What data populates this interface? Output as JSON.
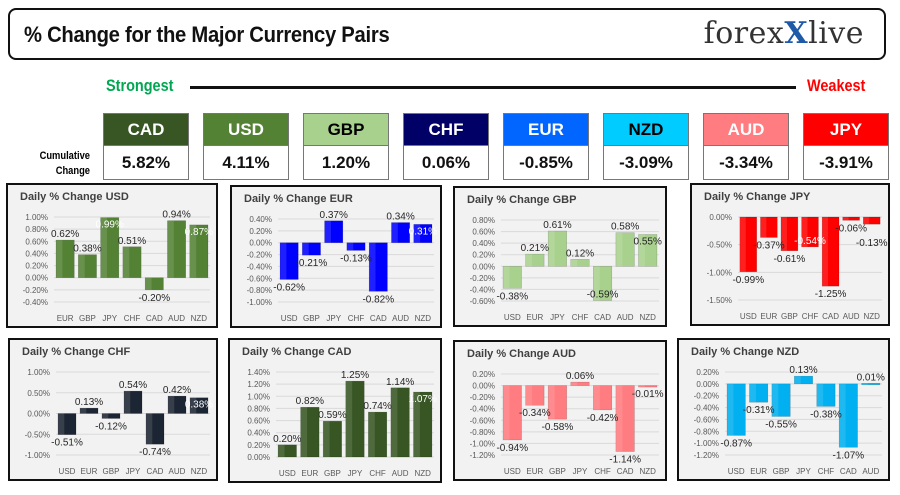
{
  "header": {
    "title": "% Change for the Major Currency Pairs",
    "logo_text": "forexlive"
  },
  "scale": {
    "strongest_label": "Strongest",
    "weakest_label": "Weakest",
    "cumulative_label_line1": "Cumulative",
    "cumulative_label_line2": "Change"
  },
  "currencies": [
    {
      "code": "CAD",
      "value": "5.82%",
      "color": "#375623",
      "text_color": "#ffffff"
    },
    {
      "code": "USD",
      "value": "4.11%",
      "color": "#548235",
      "text_color": "#ffffff"
    },
    {
      "code": "GBP",
      "value": "1.20%",
      "color": "#a9d18e",
      "text_color": "#000000"
    },
    {
      "code": "CHF",
      "value": "0.06%",
      "color": "#000066",
      "text_color": "#ffffff"
    },
    {
      "code": "EUR",
      "value": "-0.85%",
      "color": "#0066ff",
      "text_color": "#ffffff"
    },
    {
      "code": "NZD",
      "value": "-3.09%",
      "color": "#00ccff",
      "text_color": "#000000"
    },
    {
      "code": "AUD",
      "value": "-3.34%",
      "color": "#ff7c80",
      "text_color": "#ffffff"
    },
    {
      "code": "JPY",
      "value": "-3.91%",
      "color": "#ff0000",
      "text_color": "#ffffff"
    }
  ],
  "chart_data": [
    {
      "type": "bar",
      "title": "Daily % Change USD",
      "color": "#548235",
      "categories": [
        "EUR",
        "GBP",
        "JPY",
        "CHF",
        "CAD",
        "AUD",
        "NZD"
      ],
      "values": [
        0.62,
        0.38,
        0.99,
        0.51,
        -0.2,
        0.94,
        0.87
      ],
      "ylim": [
        -0.4,
        1.0
      ],
      "ticks": [
        "1.00%",
        "0.80%",
        "0.60%",
        "0.40%",
        "0.20%",
        "0.00%",
        "-0.20%",
        "-0.40%"
      ],
      "grid": true
    },
    {
      "type": "bar",
      "title": "Daily % Change EUR",
      "color": "#0000ff",
      "categories": [
        "USD",
        "GBP",
        "JPY",
        "CHF",
        "CAD",
        "AUD",
        "NZD"
      ],
      "values": [
        -0.62,
        -0.21,
        0.37,
        -0.13,
        -0.82,
        0.34,
        0.31
      ],
      "ylim": [
        -1.0,
        0.4
      ],
      "ticks": [
        "0.40%",
        "0.20%",
        "0.00%",
        "-0.20%",
        "-0.40%",
        "-0.60%",
        "-0.80%",
        "-1.00%"
      ],
      "grid": true
    },
    {
      "type": "bar",
      "title": "Daily % Change GBP",
      "color": "#a9d18e",
      "categories": [
        "USD",
        "EUR",
        "JPY",
        "CHF",
        "CAD",
        "AUD",
        "NZD"
      ],
      "values": [
        -0.38,
        0.21,
        0.61,
        0.12,
        -0.59,
        0.58,
        0.55
      ],
      "ylim": [
        -0.6,
        0.8
      ],
      "ticks": [
        "0.80%",
        "0.60%",
        "0.40%",
        "0.20%",
        "0.00%",
        "-0.20%",
        "-0.40%",
        "-0.60%"
      ],
      "grid": true
    },
    {
      "type": "bar",
      "title": "Daily % Change JPY",
      "color": "#ff0000",
      "categories": [
        "USD",
        "EUR",
        "GBP",
        "CHF",
        "CAD",
        "AUD",
        "NZD"
      ],
      "values": [
        -0.99,
        -0.37,
        -0.61,
        -0.54,
        -1.25,
        -0.06,
        -0.13
      ],
      "ylim": [
        -1.5,
        0.0
      ],
      "ticks": [
        "0.00%",
        "-0.50%",
        "-1.00%",
        "-1.50%"
      ],
      "grid": true
    },
    {
      "type": "bar",
      "title": "Daily % Change CHF",
      "color": "#1c2533",
      "categories": [
        "USD",
        "EUR",
        "GBP",
        "JPY",
        "CAD",
        "AUD",
        "NZD"
      ],
      "values": [
        -0.51,
        0.13,
        -0.12,
        0.54,
        -0.74,
        0.42,
        0.38
      ],
      "ylim": [
        -1.0,
        1.0
      ],
      "ticks": [
        "1.00%",
        "0.50%",
        "0.00%",
        "-0.50%",
        "-1.00%"
      ],
      "grid": true
    },
    {
      "type": "bar",
      "title": "Daily % Change CAD",
      "color": "#375623",
      "categories": [
        "USD",
        "EUR",
        "GBP",
        "JPY",
        "CHF",
        "AUD",
        "NZD"
      ],
      "values": [
        0.2,
        0.82,
        0.59,
        1.25,
        0.74,
        1.14,
        1.07
      ],
      "ylim": [
        0.0,
        1.4
      ],
      "ticks": [
        "1.40%",
        "1.20%",
        "1.00%",
        "0.80%",
        "0.60%",
        "0.40%",
        "0.20%",
        "0.00%"
      ],
      "grid": true
    },
    {
      "type": "bar",
      "title": "Daily % Change AUD",
      "color": "#ff7c80",
      "categories": [
        "USD",
        "EUR",
        "GBP",
        "JPY",
        "CHF",
        "CAD",
        "NZD"
      ],
      "values": [
        -0.94,
        -0.34,
        -0.58,
        0.06,
        -0.42,
        -1.14,
        -0.01
      ],
      "ylim": [
        -1.2,
        0.2
      ],
      "ticks": [
        "0.20%",
        "0.00%",
        "-0.20%",
        "-0.40%",
        "-0.60%",
        "-0.80%",
        "-1.00%",
        "-1.20%"
      ],
      "grid": true
    },
    {
      "type": "bar",
      "title": "Daily % Change NZD",
      "color": "#00b0f0",
      "categories": [
        "USD",
        "EUR",
        "GBP",
        "JPY",
        "CHF",
        "CAD",
        "AUD"
      ],
      "values": [
        -0.87,
        -0.31,
        -0.55,
        0.13,
        -0.38,
        -1.07,
        0.01
      ],
      "ylim": [
        -1.2,
        0.2
      ],
      "ticks": [
        "0.20%",
        "0.00%",
        "-0.20%",
        "-0.40%",
        "-0.60%",
        "-0.80%",
        "-1.00%",
        "-1.20%"
      ],
      "grid": true
    }
  ]
}
